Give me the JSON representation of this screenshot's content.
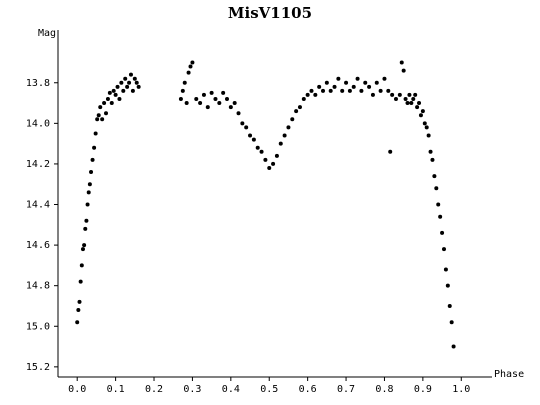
{
  "chart_data": {
    "type": "scatter",
    "title": "MisV1105",
    "xlabel": "Phase",
    "ylabel": "Mag",
    "color": "#000000",
    "x": [
      0.0,
      0.003,
      0.006,
      0.009,
      0.012,
      0.015,
      0.018,
      0.021,
      0.024,
      0.027,
      0.03,
      0.033,
      0.036,
      0.04,
      0.044,
      0.048,
      0.052,
      0.056,
      0.06,
      0.065,
      0.07,
      0.075,
      0.08,
      0.085,
      0.09,
      0.095,
      0.1,
      0.105,
      0.11,
      0.115,
      0.12,
      0.125,
      0.13,
      0.135,
      0.14,
      0.145,
      0.15,
      0.155,
      0.16,
      0.27,
      0.275,
      0.28,
      0.285,
      0.29,
      0.295,
      0.3,
      0.31,
      0.32,
      0.33,
      0.34,
      0.35,
      0.36,
      0.37,
      0.38,
      0.39,
      0.4,
      0.41,
      0.42,
      0.43,
      0.44,
      0.45,
      0.46,
      0.47,
      0.48,
      0.49,
      0.5,
      0.51,
      0.52,
      0.53,
      0.54,
      0.55,
      0.56,
      0.57,
      0.58,
      0.59,
      0.6,
      0.61,
      0.62,
      0.63,
      0.64,
      0.65,
      0.66,
      0.67,
      0.68,
      0.69,
      0.7,
      0.71,
      0.72,
      0.73,
      0.74,
      0.75,
      0.76,
      0.77,
      0.78,
      0.79,
      0.8,
      0.81,
      0.82,
      0.83,
      0.84,
      0.845,
      0.85,
      0.855,
      0.86,
      0.865,
      0.87,
      0.875,
      0.88,
      0.885,
      0.89,
      0.895,
      0.9,
      0.905,
      0.91,
      0.915,
      0.92,
      0.925,
      0.93,
      0.935,
      0.94,
      0.945,
      0.95,
      0.955,
      0.96,
      0.965,
      0.97,
      0.975,
      0.98,
      0.815
    ],
    "values": [
      14.98,
      14.92,
      14.88,
      14.78,
      14.7,
      14.62,
      14.6,
      14.52,
      14.48,
      14.4,
      14.34,
      14.3,
      14.24,
      14.18,
      14.12,
      14.05,
      13.98,
      13.96,
      13.92,
      13.98,
      13.9,
      13.95,
      13.88,
      13.85,
      13.9,
      13.84,
      13.86,
      13.82,
      13.88,
      13.8,
      13.84,
      13.78,
      13.82,
      13.8,
      13.76,
      13.84,
      13.78,
      13.8,
      13.82,
      13.88,
      13.84,
      13.8,
      13.9,
      13.75,
      13.72,
      13.7,
      13.88,
      13.9,
      13.86,
      13.92,
      13.85,
      13.88,
      13.9,
      13.85,
      13.88,
      13.92,
      13.9,
      13.95,
      14.0,
      14.02,
      14.06,
      14.08,
      14.12,
      14.14,
      14.18,
      14.22,
      14.2,
      14.16,
      14.1,
      14.06,
      14.02,
      13.98,
      13.94,
      13.92,
      13.88,
      13.86,
      13.84,
      13.86,
      13.82,
      13.84,
      13.8,
      13.84,
      13.82,
      13.78,
      13.84,
      13.8,
      13.84,
      13.82,
      13.78,
      13.84,
      13.8,
      13.82,
      13.86,
      13.8,
      13.84,
      13.78,
      13.84,
      13.86,
      13.88,
      13.86,
      13.7,
      13.74,
      13.88,
      13.9,
      13.86,
      13.9,
      13.88,
      13.86,
      13.92,
      13.9,
      13.96,
      13.94,
      14.0,
      14.02,
      14.06,
      14.14,
      14.18,
      14.26,
      14.32,
      14.4,
      14.46,
      14.54,
      14.62,
      14.72,
      14.8,
      14.9,
      14.98,
      15.1,
      14.14
    ],
    "xlim": [
      -0.05,
      1.08
    ],
    "ylim": [
      15.25,
      13.54
    ],
    "xticks": [
      {
        "value": 0,
        "label": "0.0"
      },
      0.1,
      0.2,
      0.3,
      0.4,
      0.5,
      0.6,
      0.7,
      0.8,
      0.9,
      {
        "value": 1,
        "label": "1.0"
      }
    ],
    "yticks": [
      13.8,
      {
        "value": 14,
        "label": "14.0"
      },
      14.2,
      14.4,
      14.6,
      14.8,
      {
        "value": 15,
        "label": "15.0"
      },
      15.2
    ]
  }
}
